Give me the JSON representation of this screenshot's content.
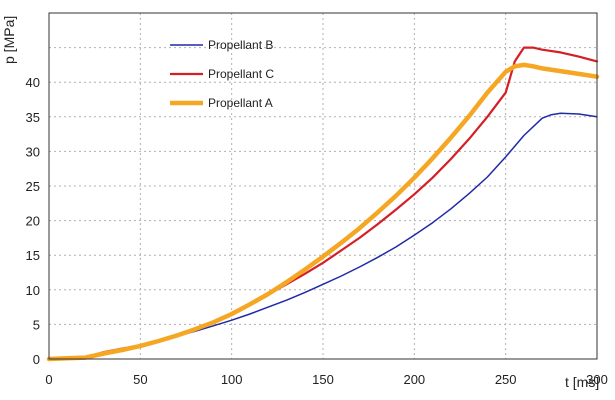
{
  "chart_data": {
    "type": "line",
    "xlabel": "t [ms]",
    "ylabel": "p [MPa]",
    "xlim": [
      0,
      300
    ],
    "ylim": [
      0,
      50
    ],
    "x_ticks": [
      0,
      50,
      100,
      150,
      200,
      250,
      300
    ],
    "y_ticks": [
      0,
      5,
      10,
      15,
      20,
      25,
      30,
      35,
      40
    ],
    "grid": true,
    "legend_position": "top-left",
    "series": [
      {
        "name": "Propellant B",
        "color": "#1f2aa8",
        "x": [
          0,
          10,
          20,
          30,
          40,
          50,
          60,
          70,
          80,
          90,
          100,
          110,
          120,
          130,
          140,
          150,
          160,
          170,
          180,
          190,
          200,
          210,
          220,
          230,
          240,
          250,
          260,
          270,
          275,
          280,
          290,
          300
        ],
        "y": [
          0,
          0.1,
          0.2,
          1.0,
          1.5,
          2.0,
          2.6,
          3.3,
          4.0,
          4.8,
          5.6,
          6.5,
          7.5,
          8.5,
          9.6,
          10.8,
          12.0,
          13.3,
          14.7,
          16.2,
          17.9,
          19.7,
          21.7,
          23.9,
          26.3,
          29.2,
          32.3,
          34.8,
          35.3,
          35.5,
          35.4,
          35.0
        ]
      },
      {
        "name": "Propellant C",
        "color": "#d41f25",
        "x": [
          0,
          10,
          20,
          30,
          40,
          50,
          60,
          70,
          80,
          90,
          100,
          110,
          120,
          130,
          140,
          150,
          160,
          170,
          180,
          190,
          200,
          210,
          220,
          230,
          240,
          250,
          255,
          260,
          265,
          270,
          280,
          290,
          300
        ],
        "y": [
          0,
          0.1,
          0.2,
          1.0,
          1.5,
          2.0,
          2.6,
          3.4,
          4.2,
          5.2,
          6.4,
          7.8,
          9.3,
          10.8,
          12.3,
          13.9,
          15.7,
          17.5,
          19.5,
          21.6,
          23.8,
          26.2,
          28.9,
          31.8,
          35.0,
          38.5,
          43.0,
          45.0,
          45.0,
          44.7,
          44.3,
          43.7,
          43.0
        ]
      },
      {
        "name": "Propellant A",
        "color": "#f5a623",
        "x": [
          0,
          10,
          20,
          30,
          40,
          50,
          60,
          70,
          80,
          90,
          100,
          110,
          120,
          130,
          140,
          150,
          160,
          170,
          180,
          190,
          200,
          210,
          220,
          230,
          240,
          250,
          255,
          260,
          265,
          270,
          280,
          290,
          300
        ],
        "y": [
          0,
          0.1,
          0.2,
          0.8,
          1.3,
          1.9,
          2.6,
          3.4,
          4.3,
          5.3,
          6.5,
          7.9,
          9.4,
          11.1,
          12.9,
          14.8,
          16.8,
          18.9,
          21.2,
          23.6,
          26.2,
          29.0,
          32.0,
          35.1,
          38.5,
          41.5,
          42.3,
          42.5,
          42.3,
          42.0,
          41.6,
          41.2,
          40.8
        ]
      }
    ]
  }
}
